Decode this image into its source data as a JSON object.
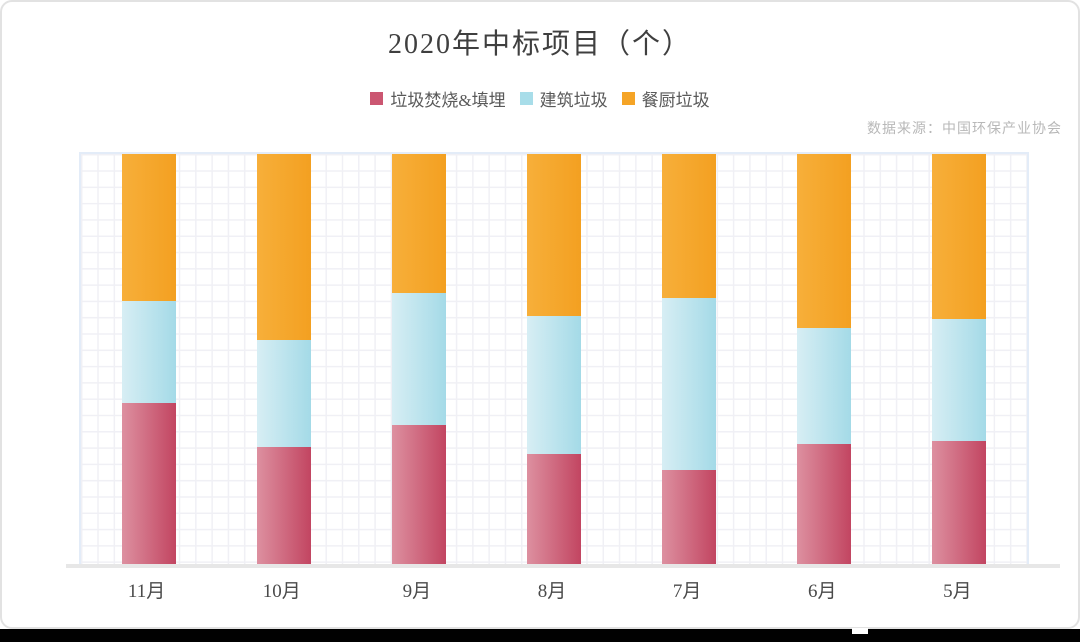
{
  "title": "2020年中标项目（个）",
  "source": "数据来源：中国环保产业协会",
  "legend": [
    {
      "label": "垃圾焚烧&填埋",
      "color": "#cb5671"
    },
    {
      "label": "建筑垃圾",
      "color": "#a8dde9"
    },
    {
      "label": "餐厨垃圾",
      "color": "#f5a426"
    }
  ],
  "chart_data": {
    "type": "bar",
    "subtype": "stacked-100-percent",
    "title": "2020年中标项目（个）",
    "xlabel": "",
    "ylabel": "",
    "ylim": [
      0,
      100
    ],
    "grid": true,
    "legend_position": "top",
    "categories": [
      "11月",
      "10月",
      "9月",
      "8月",
      "7月",
      "6月",
      "5月"
    ],
    "series": [
      {
        "name": "垃圾焚烧&填埋",
        "values_pct": [
          39.9,
          29.2,
          34.5,
          27.5,
          23.7,
          30.0,
          30.6
        ],
        "gradient": [
          "#dd90a0",
          "#c24561"
        ]
      },
      {
        "name": "建筑垃圾",
        "values_pct": [
          24.6,
          25.8,
          31.9,
          33.3,
          41.5,
          28.0,
          29.5
        ],
        "gradient": [
          "#d7eef4",
          "#a4dae7"
        ]
      },
      {
        "name": "餐厨垃圾",
        "values_pct": [
          35.5,
          44.9,
          33.6,
          39.1,
          34.8,
          42.0,
          39.9
        ],
        "gradient": [
          "#f7af3a",
          "#f3a021"
        ]
      }
    ],
    "stack_order_bottom_to_top": [
      "垃圾焚烧&填埋",
      "建筑垃圾",
      "餐厨垃圾"
    ]
  }
}
